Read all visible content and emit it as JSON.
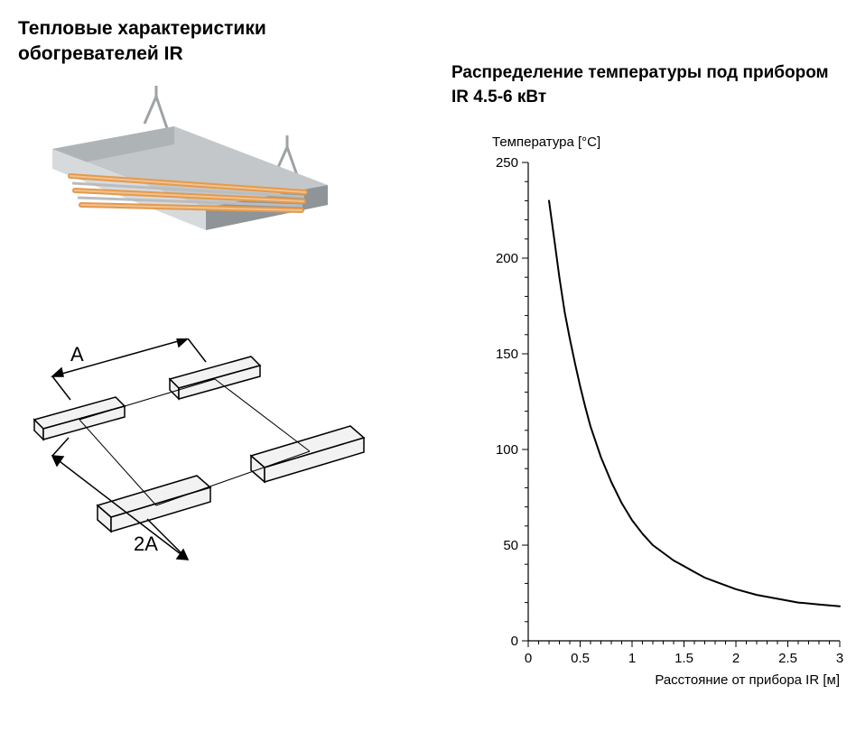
{
  "left": {
    "title_line1": "Тепловые характеристики",
    "title_line2": "обогревателей IR",
    "dim_label_A": "A",
    "dim_label_2A": "2A"
  },
  "right": {
    "title_line1": "Распределение температуры под прибором",
    "title_line2": "IR 4.5-6 кВт"
  },
  "chart": {
    "type": "line",
    "y_axis_title": "Температура [°C]",
    "x_axis_title": "Расстояние от прибора IR [м]",
    "xlim": [
      0,
      3
    ],
    "ylim": [
      0,
      250
    ],
    "x_major_ticks": [
      0,
      0.5,
      1,
      1.5,
      2,
      2.5,
      3
    ],
    "x_tick_labels": [
      "0",
      "0.5",
      "1",
      "1.5",
      "2",
      "2.5",
      "3"
    ],
    "x_minor_steps": 5,
    "y_major_ticks": [
      0,
      50,
      100,
      150,
      200,
      250
    ],
    "y_tick_labels": [
      "0",
      "50",
      "100",
      "150",
      "200",
      "250"
    ],
    "y_minor_steps": 5,
    "axis_color": "#000000",
    "line_color": "#000000",
    "line_width": 2,
    "background_color": "#ffffff",
    "data": [
      {
        "x": 0.2,
        "y": 230
      },
      {
        "x": 0.25,
        "y": 210
      },
      {
        "x": 0.3,
        "y": 190
      },
      {
        "x": 0.35,
        "y": 172
      },
      {
        "x": 0.4,
        "y": 158
      },
      {
        "x": 0.45,
        "y": 145
      },
      {
        "x": 0.5,
        "y": 133
      },
      {
        "x": 0.55,
        "y": 122
      },
      {
        "x": 0.6,
        "y": 112
      },
      {
        "x": 0.7,
        "y": 96
      },
      {
        "x": 0.8,
        "y": 83
      },
      {
        "x": 0.9,
        "y": 72
      },
      {
        "x": 1.0,
        "y": 63
      },
      {
        "x": 1.1,
        "y": 56
      },
      {
        "x": 1.2,
        "y": 50
      },
      {
        "x": 1.3,
        "y": 46
      },
      {
        "x": 1.4,
        "y": 42
      },
      {
        "x": 1.5,
        "y": 39
      },
      {
        "x": 1.6,
        "y": 36
      },
      {
        "x": 1.7,
        "y": 33
      },
      {
        "x": 1.8,
        "y": 31
      },
      {
        "x": 2.0,
        "y": 27
      },
      {
        "x": 2.2,
        "y": 24
      },
      {
        "x": 2.4,
        "y": 22
      },
      {
        "x": 2.6,
        "y": 20
      },
      {
        "x": 2.8,
        "y": 19
      },
      {
        "x": 3.0,
        "y": 18
      }
    ],
    "title_fontsize": 15,
    "tick_fontsize": 15,
    "tick_length_major": 7,
    "tick_length_minor": 4
  },
  "heater_illustration": {
    "body_top_color": "#c3c7ca",
    "body_side_color": "#8e9498",
    "body_end_color": "#aeb3b6",
    "tube_color": "#e39a4f",
    "tube_highlight": "#f2c28c",
    "bracket_color": "#9ea3a6"
  },
  "spacing_diagram": {
    "block_fill": "#f2f2f2",
    "line_color": "#000000",
    "label_fontsize": 22
  }
}
